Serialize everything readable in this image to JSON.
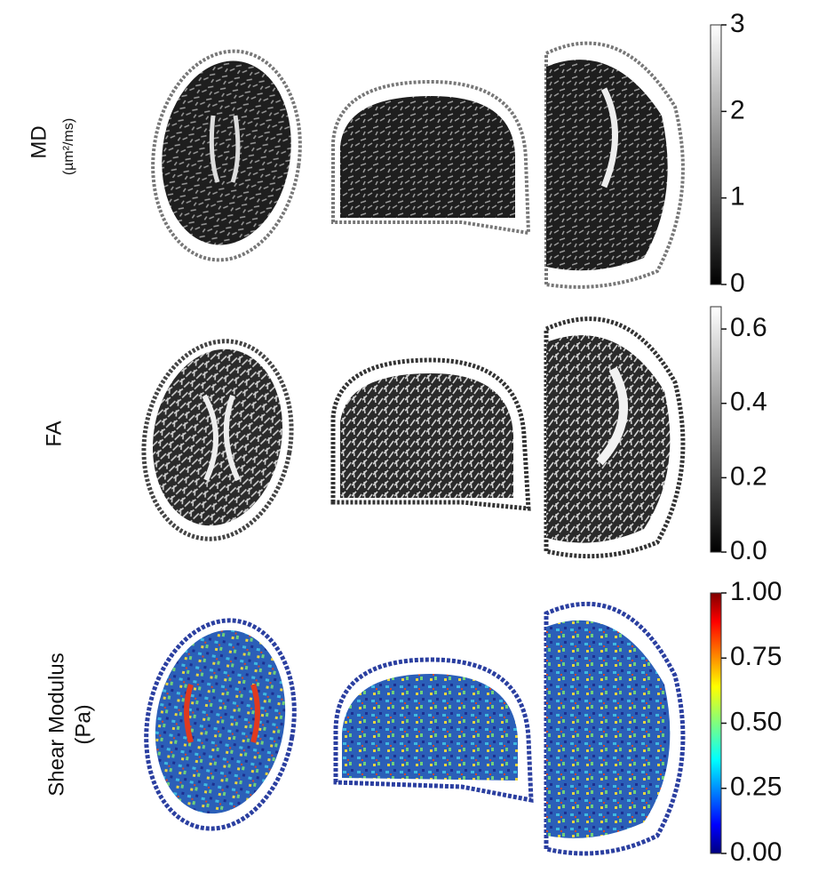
{
  "rows": [
    {
      "label": "MD",
      "sublabel": "(µm²/ms)",
      "colorbar": {
        "colormap": "gray",
        "lim": [
          0,
          3
        ],
        "ticks": [
          0,
          1,
          2,
          3
        ]
      }
    },
    {
      "label": "FA",
      "colorbar": {
        "colormap": "gray",
        "lim": [
          0,
          0.66
        ],
        "ticks": [
          {
            "value": 0,
            "label": "0.0"
          },
          0.2,
          0.4,
          0.6
        ]
      }
    },
    {
      "label": "Shear Modulus",
      "sublabel": "(Pa)",
      "colorbar": {
        "colormap": "jet",
        "lim": [
          0,
          1
        ],
        "ticks": [
          {
            "value": 0,
            "label": "0.00"
          },
          0.25,
          {
            "value": 0.5,
            "label": "0.50"
          },
          0.75,
          {
            "value": 1,
            "label": "1.00"
          }
        ]
      }
    }
  ]
}
